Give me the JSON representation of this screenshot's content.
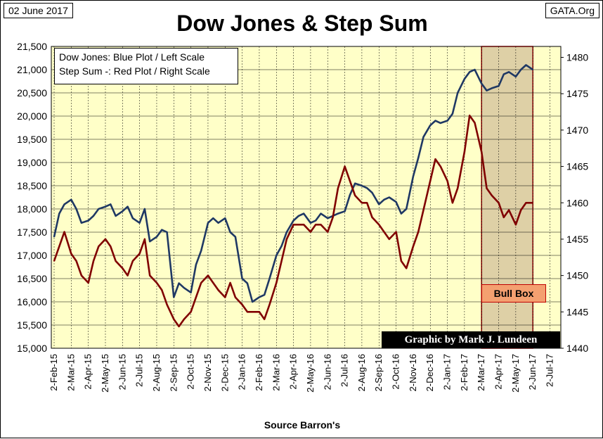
{
  "header": {
    "date": "02 June 2017",
    "site": "GATA.Org",
    "title": "Dow Jones & Step Sum"
  },
  "legend": {
    "line1": "Dow Jones: Blue Plot / Left Scale",
    "line2": "Step Sum -: Red Plot / Right Scale"
  },
  "credit": "Graphic by Mark J. Lundeen",
  "bull_box_label": "Bull Box",
  "source": "Source Barron's",
  "colors": {
    "plot_background": "#ffffc8",
    "dow_line": "#1f3864",
    "step_sum_line": "#800000",
    "bull_box_fill": "#d8c8a0",
    "bull_box_border": "#8b0000",
    "grid": "#000000"
  },
  "chart_data": {
    "type": "line",
    "title": "Dow Jones & Step Sum",
    "xlabel": "Source Barron's",
    "x_ticks": [
      "2-Feb-15",
      "2-Mar-15",
      "2-Apr-15",
      "2-May-15",
      "2-Jun-15",
      "2-Jul-15",
      "2-Aug-15",
      "2-Sep-15",
      "2-Oct-15",
      "2-Nov-15",
      "2-Dec-15",
      "2-Jan-16",
      "2-Feb-16",
      "2-Mar-16",
      "2-Apr-16",
      "2-May-16",
      "2-Jun-16",
      "2-Jul-16",
      "2-Aug-16",
      "2-Sep-16",
      "2-Oct-16",
      "2-Nov-16",
      "2-Dec-16",
      "2-Jan-17",
      "2-Feb-17",
      "2-Mar-17",
      "2-Apr-17",
      "2-May-17",
      "2-Jun-17",
      "2-Jul-17"
    ],
    "y_left": {
      "ticks": [
        "15,000",
        "15,500",
        "16,000",
        "16,500",
        "17,000",
        "17,500",
        "18,000",
        "18,500",
        "19,000",
        "19,500",
        "20,000",
        "20,500",
        "21,000",
        "21,500"
      ],
      "range": [
        15000,
        21500
      ]
    },
    "y_right": {
      "ticks": [
        "1440",
        "1445",
        "1450",
        "1455",
        "1460",
        "1465",
        "1470",
        "1475",
        "1480"
      ],
      "range": [
        1440,
        1481.5
      ]
    },
    "grid": true,
    "series": [
      {
        "name": "Dow Jones",
        "axis": "left",
        "x_month_index": [
          0,
          0.3,
          0.6,
          1,
          1.3,
          1.6,
          2,
          2.3,
          2.6,
          3,
          3.3,
          3.6,
          4,
          4.3,
          4.6,
          5,
          5.3,
          5.6,
          6,
          6.3,
          6.6,
          7,
          7.3,
          7.6,
          8,
          8.3,
          8.6,
          9,
          9.3,
          9.6,
          10,
          10.3,
          10.6,
          11,
          11.3,
          11.6,
          12,
          12.3,
          12.6,
          13,
          13.3,
          13.6,
          14,
          14.3,
          14.6,
          15,
          15.3,
          15.6,
          16,
          16.3,
          16.6,
          17,
          17.3,
          17.6,
          18,
          18.3,
          18.6,
          19,
          19.3,
          19.6,
          20,
          20.3,
          20.6,
          21,
          21.3,
          21.6,
          22,
          22.3,
          22.6,
          23,
          23.3,
          23.6,
          24,
          24.3,
          24.6,
          25,
          25.3,
          25.6,
          26,
          26.3,
          26.6,
          27,
          27.3,
          27.6,
          28
        ],
        "values": [
          17400,
          17900,
          18100,
          18200,
          18000,
          17700,
          17750,
          17850,
          18000,
          18050,
          18100,
          17850,
          17950,
          18050,
          17800,
          17700,
          18000,
          17300,
          17400,
          17550,
          17500,
          16100,
          16400,
          16300,
          16200,
          16800,
          17100,
          17700,
          17800,
          17700,
          17800,
          17500,
          17400,
          16500,
          16400,
          16000,
          16100,
          16150,
          16500,
          17000,
          17200,
          17500,
          17750,
          17850,
          17900,
          17700,
          17750,
          17900,
          17800,
          17850,
          17900,
          17950,
          18300,
          18550,
          18500,
          18450,
          18350,
          18100,
          18200,
          18250,
          18150,
          17900,
          18000,
          18700,
          19100,
          19550,
          19800,
          19900,
          19850,
          19900,
          20050,
          20500,
          20800,
          20950,
          21000,
          20700,
          20550,
          20600,
          20650,
          20900,
          20950,
          20850,
          21000,
          21100,
          21000
        ]
      },
      {
        "name": "Step Sum -",
        "axis": "right",
        "x_month_index": [
          0,
          0.3,
          0.6,
          1,
          1.3,
          1.6,
          2,
          2.3,
          2.6,
          3,
          3.3,
          3.6,
          4,
          4.3,
          4.6,
          5,
          5.3,
          5.6,
          6,
          6.3,
          6.6,
          7,
          7.3,
          7.6,
          8,
          8.3,
          8.6,
          9,
          9.3,
          9.6,
          10,
          10.3,
          10.6,
          11,
          11.3,
          11.6,
          12,
          12.3,
          12.6,
          13,
          13.3,
          13.6,
          14,
          14.3,
          14.6,
          15,
          15.3,
          15.6,
          16,
          16.3,
          16.6,
          17,
          17.3,
          17.6,
          18,
          18.3,
          18.6,
          19,
          19.3,
          19.6,
          20,
          20.3,
          20.6,
          21,
          21.3,
          21.6,
          22,
          22.3,
          22.6,
          23,
          23.3,
          23.6,
          24,
          24.3,
          24.6,
          25,
          25.3,
          25.6,
          26,
          26.3,
          26.6,
          27,
          27.3,
          27.6,
          28
        ],
        "values": [
          1452,
          1454,
          1456,
          1453,
          1452,
          1450,
          1449,
          1452,
          1454,
          1455,
          1454,
          1452,
          1451,
          1450,
          1452,
          1453,
          1455,
          1450,
          1449,
          1448,
          1446,
          1444,
          1443,
          1444,
          1445,
          1447,
          1449,
          1450,
          1449,
          1448,
          1447,
          1449,
          1447,
          1446,
          1445,
          1445,
          1445,
          1444,
          1446,
          1449,
          1452,
          1455,
          1457,
          1457,
          1457,
          1456,
          1457,
          1457,
          1456,
          1458,
          1462,
          1465,
          1463,
          1461,
          1460,
          1460,
          1458,
          1457,
          1456,
          1455,
          1456,
          1452,
          1451,
          1454,
          1456,
          1459,
          1463,
          1466,
          1465,
          1463,
          1460,
          1462,
          1467,
          1472,
          1471,
          1467,
          1462,
          1461,
          1460,
          1458,
          1459,
          1457,
          1459,
          1460,
          1460
        ]
      }
    ],
    "bull_box": {
      "from": "2-Mar-17",
      "to": "2-Jun-17"
    }
  }
}
